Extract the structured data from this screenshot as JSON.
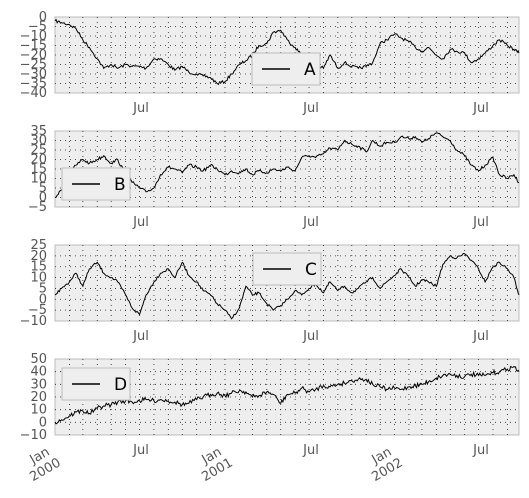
{
  "chart_data": [
    {
      "type": "line",
      "legend": {
        "entries": [
          "A"
        ],
        "placement": "center-right"
      },
      "series": [
        {
          "name": "A",
          "x": [
            "2000-01-01",
            "2000-01-15",
            "2000-02-01",
            "2000-02-15",
            "2000-03-01",
            "2000-03-15",
            "2000-04-01",
            "2000-04-15",
            "2000-05-01",
            "2000-05-15",
            "2000-06-01",
            "2000-06-15",
            "2000-07-01",
            "2000-07-15",
            "2000-08-01",
            "2000-08-15",
            "2000-09-01",
            "2000-09-15",
            "2000-10-01",
            "2000-10-15",
            "2000-11-01",
            "2000-11-15",
            "2000-12-01",
            "2000-12-15",
            "2001-01-01",
            "2001-01-15",
            "2001-02-01",
            "2001-02-15",
            "2001-03-01",
            "2001-03-15",
            "2001-04-01",
            "2001-04-15",
            "2001-05-01",
            "2001-05-15",
            "2001-06-01",
            "2001-06-15",
            "2001-07-01",
            "2001-07-15",
            "2001-08-01",
            "2001-08-15",
            "2001-09-01",
            "2001-09-15",
            "2001-10-01",
            "2001-10-15",
            "2001-11-01",
            "2001-11-15",
            "2001-12-01",
            "2001-12-15",
            "2002-01-01",
            "2002-01-15",
            "2002-02-01",
            "2002-02-15",
            "2002-03-01",
            "2002-03-15",
            "2002-04-01",
            "2002-04-15",
            "2002-05-01",
            "2002-05-15",
            "2002-06-01",
            "2002-06-15",
            "2002-07-01",
            "2002-07-15",
            "2002-08-01",
            "2002-08-15",
            "2002-09-01",
            "2002-09-15",
            "2002-09-26"
          ],
          "values": [
            -2,
            -3,
            -4,
            -6,
            -12,
            -16,
            -22,
            -27,
            -25,
            -27,
            -25,
            -26,
            -26,
            -27,
            -22,
            -22,
            -25,
            -28,
            -26,
            -29,
            -30,
            -31,
            -32,
            -35,
            -34,
            -30,
            -25,
            -23,
            -20,
            -15,
            -14,
            -8,
            -7,
            -12,
            -16,
            -20,
            -30,
            -25,
            -27,
            -20,
            -27,
            -24,
            -26,
            -27,
            -26,
            -24,
            -14,
            -12,
            -9,
            -11,
            -13,
            -16,
            -18,
            -16,
            -20,
            -22,
            -17,
            -18,
            -19,
            -24,
            -22,
            -19,
            -15,
            -12,
            -15,
            -17,
            -19
          ]
        }
      ],
      "ylim": [
        -40,
        0
      ],
      "yticks": [
        "0",
        "−5",
        "−10",
        "−15",
        "−20",
        "−25",
        "−30",
        "−35",
        "−40"
      ],
      "xticks": [
        "Jul",
        "Jul",
        "Jul"
      ],
      "grid": true
    },
    {
      "type": "line",
      "legend": {
        "entries": [
          "B"
        ],
        "placement": "lower-left"
      },
      "series": [
        {
          "name": "B",
          "x": [
            "2000-01-01",
            "2000-01-15",
            "2000-02-01",
            "2000-02-15",
            "2000-03-01",
            "2000-03-15",
            "2000-04-01",
            "2000-04-15",
            "2000-05-01",
            "2000-05-15",
            "2000-06-01",
            "2000-06-15",
            "2000-07-01",
            "2000-07-15",
            "2000-08-01",
            "2000-08-15",
            "2000-09-01",
            "2000-09-15",
            "2000-10-01",
            "2000-10-15",
            "2000-11-01",
            "2000-11-15",
            "2000-12-01",
            "2000-12-15",
            "2001-01-01",
            "2001-01-15",
            "2001-02-01",
            "2001-02-15",
            "2001-03-01",
            "2001-03-15",
            "2001-04-01",
            "2001-04-15",
            "2001-05-01",
            "2001-05-15",
            "2001-06-01",
            "2001-06-15",
            "2001-07-01",
            "2001-07-15",
            "2001-08-01",
            "2001-08-15",
            "2001-09-01",
            "2001-09-15",
            "2001-10-01",
            "2001-10-15",
            "2001-11-01",
            "2001-11-15",
            "2001-12-01",
            "2001-12-15",
            "2002-01-01",
            "2002-01-15",
            "2002-02-01",
            "2002-02-15",
            "2002-03-01",
            "2002-03-15",
            "2002-04-01",
            "2002-04-15",
            "2002-05-01",
            "2002-05-15",
            "2002-06-01",
            "2002-06-15",
            "2002-07-01",
            "2002-07-15",
            "2002-08-01",
            "2002-08-15",
            "2002-09-01",
            "2002-09-15",
            "2002-09-26"
          ],
          "values": [
            0,
            4,
            12,
            17,
            20,
            18,
            20,
            22,
            18,
            20,
            12,
            8,
            5,
            3,
            5,
            12,
            16,
            15,
            13,
            17,
            16,
            14,
            17,
            15,
            12,
            14,
            13,
            15,
            12,
            14,
            13,
            15,
            14,
            16,
            14,
            21,
            22,
            21,
            23,
            26,
            25,
            30,
            28,
            27,
            24,
            30,
            27,
            29,
            29,
            32,
            31,
            32,
            29,
            31,
            34,
            32,
            30,
            25,
            22,
            17,
            14,
            17,
            21,
            12,
            10,
            12,
            8
          ]
        }
      ],
      "ylim": [
        -5,
        35
      ],
      "yticks": [
        "35",
        "30",
        "25",
        "20",
        "15",
        "10",
        "5",
        "0",
        "−5"
      ],
      "xticks": [
        "Jul",
        "Jul",
        "Jul"
      ],
      "grid": true
    },
    {
      "type": "line",
      "legend": {
        "entries": [
          "C"
        ],
        "placement": "top-center"
      },
      "series": [
        {
          "name": "C",
          "x": [
            "2000-01-01",
            "2000-01-15",
            "2000-02-01",
            "2000-02-15",
            "2000-03-01",
            "2000-03-15",
            "2000-04-01",
            "2000-04-15",
            "2000-05-01",
            "2000-05-15",
            "2000-06-01",
            "2000-06-15",
            "2000-07-01",
            "2000-07-15",
            "2000-08-01",
            "2000-08-15",
            "2000-09-01",
            "2000-09-15",
            "2000-10-01",
            "2000-10-15",
            "2000-11-01",
            "2000-11-15",
            "2000-12-01",
            "2000-12-15",
            "2001-01-01",
            "2001-01-15",
            "2001-02-01",
            "2001-02-15",
            "2001-03-01",
            "2001-03-15",
            "2001-04-01",
            "2001-04-15",
            "2001-05-01",
            "2001-05-15",
            "2001-06-01",
            "2001-06-15",
            "2001-07-01",
            "2001-07-15",
            "2001-08-01",
            "2001-08-15",
            "2001-09-01",
            "2001-09-15",
            "2001-10-01",
            "2001-10-15",
            "2001-11-01",
            "2001-11-15",
            "2001-12-01",
            "2001-12-15",
            "2002-01-01",
            "2002-01-15",
            "2002-02-01",
            "2002-02-15",
            "2002-03-01",
            "2002-03-15",
            "2002-04-01",
            "2002-04-15",
            "2002-05-01",
            "2002-05-15",
            "2002-06-01",
            "2002-06-15",
            "2002-07-01",
            "2002-07-15",
            "2002-08-01",
            "2002-08-15",
            "2002-09-01",
            "2002-09-15",
            "2002-09-26"
          ],
          "values": [
            2,
            5,
            8,
            12,
            6,
            14,
            17,
            12,
            10,
            8,
            2,
            -4,
            -7,
            2,
            8,
            12,
            14,
            10,
            17,
            11,
            8,
            4,
            2,
            -2,
            -5,
            -9,
            -4,
            6,
            2,
            3,
            -2,
            -5,
            -3,
            0,
            4,
            2,
            5,
            7,
            3,
            8,
            4,
            6,
            3,
            5,
            8,
            10,
            5,
            8,
            11,
            14,
            10,
            6,
            9,
            8,
            6,
            16,
            20,
            19,
            21,
            18,
            14,
            8,
            15,
            17,
            14,
            10,
            2
          ]
        }
      ],
      "ylim": [
        -10,
        25
      ],
      "yticks": [
        "25",
        "20",
        "15",
        "10",
        "5",
        "0",
        "−5",
        "−10"
      ],
      "xticks": [
        "Jul",
        "Jul",
        "Jul"
      ],
      "grid": true
    },
    {
      "type": "line",
      "legend": {
        "entries": [
          "D"
        ],
        "placement": "top-left"
      },
      "series": [
        {
          "name": "D",
          "x": [
            "2000-01-01",
            "2000-01-15",
            "2000-02-01",
            "2000-02-15",
            "2000-03-01",
            "2000-03-15",
            "2000-04-01",
            "2000-04-15",
            "2000-05-01",
            "2000-05-15",
            "2000-06-01",
            "2000-06-15",
            "2000-07-01",
            "2000-07-15",
            "2000-08-01",
            "2000-08-15",
            "2000-09-01",
            "2000-09-15",
            "2000-10-01",
            "2000-10-15",
            "2000-11-01",
            "2000-11-15",
            "2000-12-01",
            "2000-12-15",
            "2001-01-01",
            "2001-01-15",
            "2001-02-01",
            "2001-02-15",
            "2001-03-01",
            "2001-03-15",
            "2001-04-01",
            "2001-04-15",
            "2001-05-01",
            "2001-05-15",
            "2001-06-01",
            "2001-06-15",
            "2001-07-01",
            "2001-07-15",
            "2001-08-01",
            "2001-08-15",
            "2001-09-01",
            "2001-09-15",
            "2001-10-01",
            "2001-10-15",
            "2001-11-01",
            "2001-11-15",
            "2001-12-01",
            "2001-12-15",
            "2002-01-01",
            "2002-01-15",
            "2002-02-01",
            "2002-02-15",
            "2002-03-01",
            "2002-03-15",
            "2002-04-01",
            "2002-04-15",
            "2002-05-01",
            "2002-05-15",
            "2002-06-01",
            "2002-06-15",
            "2002-07-01",
            "2002-07-15",
            "2002-08-01",
            "2002-08-15",
            "2002-09-01",
            "2002-09-15",
            "2002-09-26"
          ],
          "values": [
            0,
            2,
            5,
            8,
            9,
            7,
            11,
            13,
            14,
            16,
            17,
            16,
            17,
            18,
            17,
            18,
            17,
            16,
            14,
            15,
            18,
            20,
            22,
            23,
            21,
            23,
            25,
            24,
            20,
            21,
            24,
            22,
            15,
            22,
            23,
            27,
            24,
            26,
            29,
            28,
            30,
            31,
            33,
            34,
            34,
            30,
            28,
            26,
            27,
            26,
            28,
            29,
            30,
            32,
            35,
            37,
            38,
            37,
            36,
            38,
            37,
            37,
            39,
            40,
            42,
            44,
            40
          ]
        }
      ],
      "ylim": [
        -10,
        50
      ],
      "yticks": [
        "50",
        "40",
        "30",
        "20",
        "10",
        "0",
        "−10"
      ],
      "xticks": [
        "Jan\n2000",
        "Jul",
        "Jan\n2001",
        "Jul",
        "Jan\n2002",
        "Jul"
      ],
      "grid": true
    }
  ],
  "panels": [
    {
      "legend_label": "A",
      "ticks_y": [
        "0",
        "−5",
        "−10",
        "−15",
        "−20",
        "−25",
        "−30",
        "−35",
        "−40"
      ],
      "ticks_x": [
        "Jul",
        "Jul",
        "Jul"
      ]
    },
    {
      "legend_label": "B",
      "ticks_y": [
        "35",
        "30",
        "25",
        "20",
        "15",
        "10",
        "5",
        "0",
        "−5"
      ],
      "ticks_x": [
        "Jul",
        "Jul",
        "Jul"
      ]
    },
    {
      "legend_label": "C",
      "ticks_y": [
        "25",
        "20",
        "15",
        "10",
        "5",
        "0",
        "−5",
        "−10"
      ],
      "ticks_x": [
        "Jul",
        "Jul",
        "Jul"
      ]
    },
    {
      "legend_label": "D",
      "ticks_y": [
        "50",
        "40",
        "30",
        "20",
        "10",
        "0",
        "−10"
      ],
      "ticks_x": [
        "Jul",
        "Jul",
        "Jul"
      ],
      "ticks_x_year": [
        {
          "month": "Jan",
          "year": "2000"
        },
        {
          "month": "Jan",
          "year": "2001"
        },
        {
          "month": "Jan",
          "year": "2002"
        }
      ]
    }
  ],
  "style": {
    "line_color": "#000000",
    "axes_face": "#eeeeee",
    "axes_edge": "#bcbcbc",
    "grid_color": "#222222",
    "tick_text": "#555555"
  }
}
